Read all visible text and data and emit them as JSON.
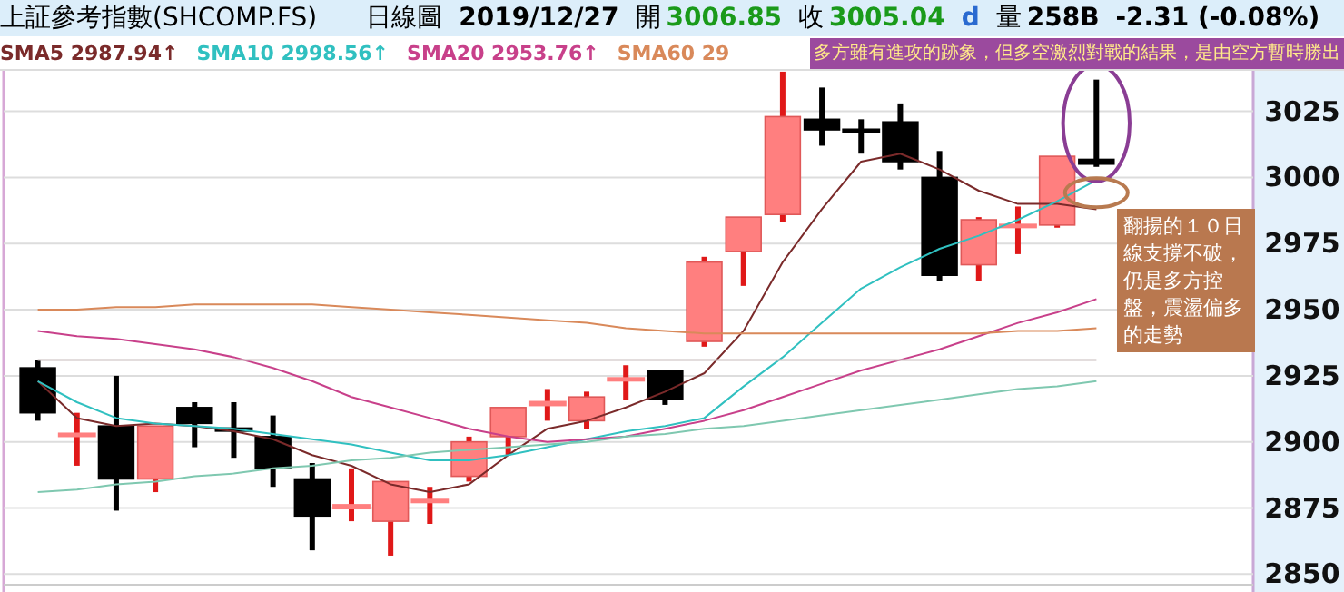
{
  "chart_data": {
    "type": "candlestick",
    "title": "上証參考指數(SHCOMP.FS)",
    "annotations": [
      "日線圖",
      "2019/12/27",
      "開",
      "3006.85",
      "收",
      "3005.04",
      "d",
      "量",
      "258B",
      "-2.31 (-0.08%)",
      "多方雖有進攻的跡象，但多空激烈對戰的結果，是由空方暫時勝出",
      "翻揚的１０日線支撐不破，仍是多方控盤，震盪偏多的走勢"
    ],
    "categories": [
      null,
      null,
      null,
      null,
      null,
      null,
      null,
      null,
      null,
      null,
      null,
      null,
      null,
      null,
      null,
      null,
      null,
      null,
      null,
      null,
      null,
      null,
      null,
      null,
      null,
      null,
      null,
      null
    ],
    "ohlc": [
      [
        2928,
        2931,
        2908,
        2911
      ],
      [
        2903,
        2911,
        2891,
        2903
      ],
      [
        2906,
        2925,
        2874,
        2886
      ],
      [
        2886,
        2906,
        2881,
        2906
      ],
      [
        2913,
        2915,
        2898,
        2907
      ],
      [
        2905,
        2915,
        2894,
        2905
      ],
      [
        2902,
        2910,
        2883,
        2890
      ],
      [
        2886,
        2892,
        2859,
        2872
      ],
      [
        2875,
        2890,
        2870,
        2876
      ],
      [
        2870,
        2885,
        2857,
        2885
      ],
      [
        2878,
        2883,
        2869,
        2878
      ],
      [
        2887,
        2902,
        2885,
        2900
      ],
      [
        2902,
        2913,
        2895,
        2913
      ],
      [
        2914,
        2920,
        2908,
        2915
      ],
      [
        2908,
        2919,
        2905,
        2917
      ],
      [
        2924,
        2929,
        2916,
        2924
      ],
      [
        2927,
        2927,
        2914,
        2916
      ],
      [
        2938,
        2970,
        2936,
        2968
      ],
      [
        2972,
        2985,
        2959,
        2985
      ],
      [
        2986,
        3040,
        2983,
        3023
      ],
      [
        3022,
        3034,
        3012,
        3018
      ],
      [
        3018,
        3022,
        3009,
        3018
      ],
      [
        3021,
        3028,
        3003,
        3006
      ],
      [
        3000,
        3010,
        2961,
        2963
      ],
      [
        2967,
        2985,
        2961,
        2984
      ],
      [
        2982,
        2989,
        2971,
        2982
      ],
      [
        2982,
        3008,
        2981,
        3008
      ],
      [
        3006.85,
        3037,
        3004,
        3005.04
      ]
    ],
    "colors": [
      "#000000",
      "#ff7f7f",
      "#000000",
      "#ff7f7f",
      "#000000",
      "#000000",
      "#000000",
      "#000000",
      "#ff7f7f",
      "#ff7f7f",
      "#ff7f7f",
      "#ff7f7f",
      "#ff7f7f",
      "#ff7f7f",
      "#ff7f7f",
      "#ff7f7f",
      "#000000",
      "#ff7f7f",
      "#ff7f7f",
      "#ff7f7f",
      "#000000",
      "#000000",
      "#000000",
      "#000000",
      "#ff7f7f",
      "#ff7f7f",
      "#ff7f7f",
      "#000000"
    ],
    "series": [
      {
        "name": "SMA5 2987.94↑",
        "color": "#7a2a2a",
        "type": "line",
        "values": [
          2923,
          2909,
          2906,
          2907,
          2906,
          2904,
          2901,
          2895,
          2891,
          2884,
          2881,
          2884,
          2895,
          2905,
          2908,
          2913,
          2919,
          2926,
          2942,
          2968,
          2988,
          3006,
          3009,
          3003,
          2995,
          2990,
          2990,
          2988
        ]
      },
      {
        "name": "SMA10 2998.56↑",
        "color": "#30c0c0",
        "type": "line",
        "values": [
          2923,
          2915,
          2909,
          2907,
          2906,
          2905,
          2903,
          2901,
          2899,
          2896,
          2893,
          2893,
          2895,
          2898,
          2901,
          2904,
          2906,
          2909,
          2921,
          2932,
          2945,
          2958,
          2966,
          2973,
          2978,
          2984,
          2991,
          2999
        ]
      },
      {
        "name": "SMA20 2953.76↑",
        "color": "#c8408a",
        "type": "line",
        "values": [
          2942,
          2940,
          2939,
          2937,
          2935,
          2932,
          2928,
          2923,
          2917,
          2913,
          2909,
          2905,
          2902,
          2900,
          2901,
          2902,
          2905,
          2908,
          2912,
          2917,
          2922,
          2927,
          2931,
          2935,
          2940,
          2945,
          2949,
          2954
        ]
      },
      {
        "name": "SMA60 29",
        "color": "#d9895a",
        "type": "line",
        "values": [
          2950,
          2950,
          2951,
          2951,
          2952,
          2952,
          2952,
          2952,
          2951,
          2950,
          2949,
          2948,
          2947,
          2946,
          2945,
          2943,
          2942,
          2941,
          2941,
          2941,
          2941,
          2941,
          2941,
          2941,
          2941,
          2942,
          2942,
          2943
        ]
      },
      {
        "color": "#7fc8b0",
        "type": "line",
        "values": [
          2881,
          2882,
          2884,
          2885,
          2887,
          2888,
          2890,
          2891,
          2893,
          2894,
          2896,
          2897,
          2898,
          2899,
          2900,
          2902,
          2903,
          2905,
          2906,
          2908,
          2910,
          2912,
          2914,
          2916,
          2918,
          2920,
          2921,
          2923
        ]
      },
      {
        "color": "#c8bcbc",
        "type": "line",
        "values": [
          2931,
          2931,
          2931,
          2931,
          2931,
          2931,
          2931,
          2931,
          2931,
          2931,
          2931,
          2931,
          2931,
          2931,
          2931,
          2931,
          2931,
          2931,
          2931,
          2931,
          2931,
          2931,
          2931,
          2931,
          2931,
          2931,
          2931,
          2931
        ]
      }
    ],
    "ylim": [
      2846,
      3041
    ],
    "yticks": [
      2850,
      2875,
      2900,
      2925,
      2950,
      2975,
      3000,
      3025
    ],
    "grid": "y",
    "legend": "top",
    "tick_labels": "y"
  }
}
